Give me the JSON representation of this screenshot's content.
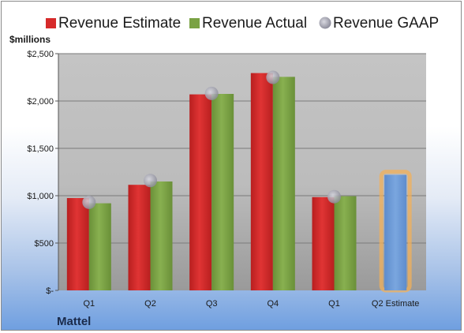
{
  "company": "Mattel",
  "colors": {
    "estimate": "#d62a2a",
    "actual": "#7aa244",
    "gaap": "#a9a9b5",
    "projection": "#6f9bd6",
    "projection_glow": "#f2b05a",
    "plot_bg": "#bfbfbf"
  },
  "legend": [
    {
      "label": "Revenue Estimate",
      "icon": "red-square-icon"
    },
    {
      "label": "Revenue Actual",
      "icon": "green-square-icon"
    },
    {
      "label": "Revenue GAAP",
      "icon": "grey-circle-icon"
    }
  ],
  "chart_data": {
    "type": "bar",
    "title": "",
    "ylabel": "$millions",
    "xlabel": "",
    "ylim": [
      0,
      2500
    ],
    "yticks": [
      0,
      500,
      1000,
      1500,
      2000,
      2500
    ],
    "ytick_labels": [
      "$-",
      "$500",
      "$1,000",
      "$1,500",
      "$2,000",
      "$2,500"
    ],
    "categories": [
      "Q1",
      "Q2",
      "Q3",
      "Q4",
      "Q1",
      "Q2 Estimate"
    ],
    "grid": true,
    "legend_position": "top",
    "series": [
      {
        "name": "Revenue Estimate",
        "kind": "bar",
        "values": [
          975,
          1115,
          2070,
          2295,
          985,
          null
        ]
      },
      {
        "name": "Revenue Actual",
        "kind": "bar",
        "values": [
          920,
          1150,
          2075,
          2255,
          995,
          null
        ]
      },
      {
        "name": "Revenue GAAP",
        "kind": "marker",
        "values": [
          930,
          1160,
          2080,
          2250,
          990,
          null
        ]
      },
      {
        "name": "Q2 Estimate",
        "kind": "projection",
        "values": [
          null,
          null,
          null,
          null,
          null,
          1220
        ]
      }
    ]
  }
}
